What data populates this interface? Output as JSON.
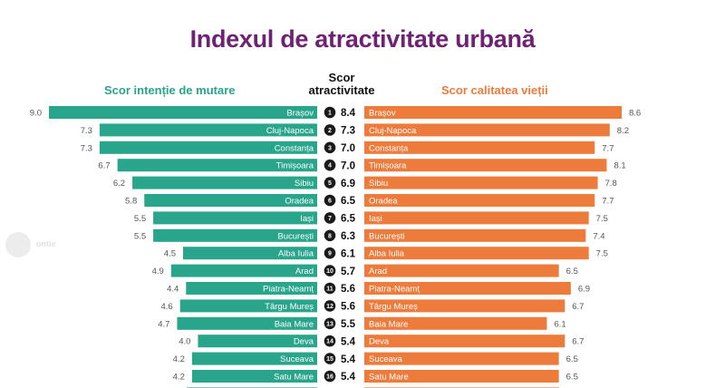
{
  "title": "Indexul de atractivitate urbană",
  "headers": {
    "left": "Scor intenție de mutare",
    "middle_line1": "Scor",
    "middle_line2": "atractivitate",
    "right": "Scor calitatea vieții"
  },
  "colors": {
    "title": "#6e2273",
    "left_series": "#28a58a",
    "right_series": "#ed7b3c",
    "rank_badge": "#1a1a1a"
  },
  "chart_data": {
    "type": "bar",
    "title": "Indexul de atractivitate urbană",
    "categories": [
      "Brașov",
      "Cluj-Napoca",
      "Constanța",
      "Timișoara",
      "Sibiu",
      "Oradea",
      "Iași",
      "București",
      "Alba Iulia",
      "Arad",
      "Piatra-Neamț",
      "Târgu Mureș",
      "Baia Mare",
      "Deva",
      "Suceava",
      "Satu Mare"
    ],
    "ranks": [
      1,
      2,
      3,
      4,
      5,
      6,
      7,
      8,
      9,
      10,
      11,
      12,
      13,
      14,
      15,
      16
    ],
    "series": [
      {
        "name": "Scor intenție de mutare",
        "values": [
          9.0,
          7.3,
          7.3,
          6.7,
          6.2,
          5.8,
          5.5,
          5.5,
          4.5,
          4.9,
          4.4,
          4.6,
          4.7,
          4.0,
          4.2,
          4.2
        ]
      },
      {
        "name": "Scor atractivitate",
        "values": [
          8.4,
          7.3,
          7.0,
          7.0,
          6.9,
          6.5,
          6.5,
          6.3,
          6.1,
          5.7,
          5.6,
          5.6,
          5.5,
          5.4,
          5.4,
          5.4
        ]
      },
      {
        "name": "Scor calitatea vieții",
        "values": [
          8.6,
          8.2,
          7.7,
          8.1,
          7.8,
          7.7,
          7.5,
          7.4,
          7.5,
          6.5,
          6.9,
          6.7,
          6.1,
          6.7,
          6.5,
          6.5
        ]
      }
    ],
    "legend": "top",
    "grid": false
  }
}
